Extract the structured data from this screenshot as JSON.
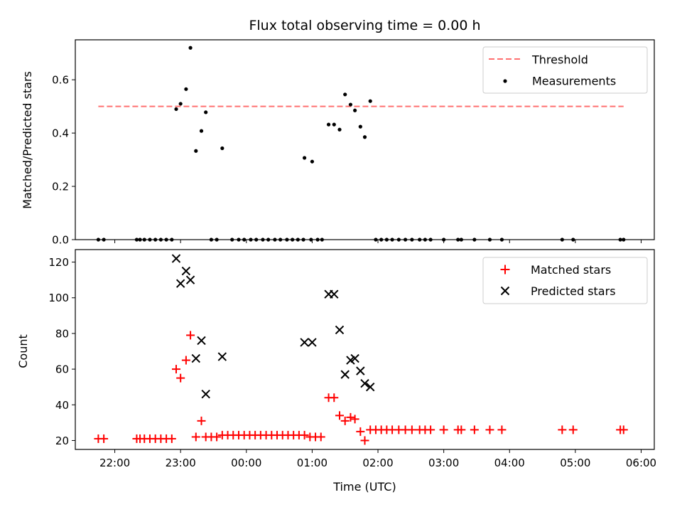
{
  "chart_data": [
    {
      "type": "scatter",
      "title": "Flux total observing time = 0.00 h",
      "xlabel": "",
      "ylabel": "Matched/Predicted stars",
      "xlim": [
        "21:24",
        "06:12"
      ],
      "ylim": [
        0,
        0.75
      ],
      "x_ticks": [
        "22:00",
        "23:00",
        "00:00",
        "01:00",
        "02:00",
        "03:00",
        "04:00",
        "05:00",
        "06:00"
      ],
      "x_tick_labels_visible": false,
      "y_ticks": [
        0.0,
        0.2,
        0.4,
        0.6
      ],
      "y_tick_labels": [
        "0.0",
        "0.2",
        "0.4",
        "0.6"
      ],
      "legend": "top-right",
      "series": [
        {
          "name": "Threshold",
          "kind": "dashed-line",
          "color": "#ff7070",
          "x": [
            "21:45",
            "05:44"
          ],
          "y": [
            0.5,
            0.5
          ]
        },
        {
          "name": "Measurements",
          "kind": "dots",
          "color": "#000000",
          "points": [
            [
              "21:45",
              0.0
            ],
            [
              "21:50",
              0.0
            ],
            [
              "22:20",
              0.0
            ],
            [
              "22:23",
              0.0
            ],
            [
              "22:27",
              0.0
            ],
            [
              "22:32",
              0.0
            ],
            [
              "22:37",
              0.0
            ],
            [
              "22:42",
              0.0
            ],
            [
              "22:47",
              0.0
            ],
            [
              "22:52",
              0.0
            ],
            [
              "22:56",
              0.49
            ],
            [
              "23:00",
              0.51
            ],
            [
              "23:05",
              0.565
            ],
            [
              "23:09",
              0.72
            ],
            [
              "23:14",
              0.333
            ],
            [
              "23:19",
              0.408
            ],
            [
              "23:23",
              0.478
            ],
            [
              "23:28",
              0.0
            ],
            [
              "23:33",
              0.0
            ],
            [
              "23:38",
              0.343
            ],
            [
              "23:47",
              0.0
            ],
            [
              "23:53",
              0.0
            ],
            [
              "23:58",
              0.0
            ],
            [
              "00:04",
              0.0
            ],
            [
              "00:09",
              0.0
            ],
            [
              "00:15",
              0.0
            ],
            [
              "00:20",
              0.0
            ],
            [
              "00:26",
              0.0
            ],
            [
              "00:31",
              0.0
            ],
            [
              "00:37",
              0.0
            ],
            [
              "00:42",
              0.0
            ],
            [
              "00:47",
              0.0
            ],
            [
              "00:52",
              0.0
            ],
            [
              "00:53",
              0.307
            ],
            [
              "00:59",
              0.0
            ],
            [
              "01:00",
              0.293
            ],
            [
              "01:05",
              0.0
            ],
            [
              "01:09",
              0.0
            ],
            [
              "01:15",
              0.432
            ],
            [
              "01:20",
              0.432
            ],
            [
              "01:25",
              0.413
            ],
            [
              "01:30",
              0.545
            ],
            [
              "01:35",
              0.507
            ],
            [
              "01:39",
              0.485
            ],
            [
              "01:44",
              0.424
            ],
            [
              "01:48",
              0.385
            ],
            [
              "01:53",
              0.52
            ],
            [
              "01:58",
              0.0
            ],
            [
              "02:03",
              0.0
            ],
            [
              "02:08",
              0.0
            ],
            [
              "02:13",
              0.0
            ],
            [
              "02:19",
              0.0
            ],
            [
              "02:25",
              0.0
            ],
            [
              "02:31",
              0.0
            ],
            [
              "02:38",
              0.0
            ],
            [
              "02:43",
              0.0
            ],
            [
              "02:48",
              0.0
            ],
            [
              "03:00",
              0.0
            ],
            [
              "03:13",
              0.0
            ],
            [
              "03:16",
              0.0
            ],
            [
              "03:28",
              0.0
            ],
            [
              "03:42",
              0.0
            ],
            [
              "03:53",
              0.0
            ],
            [
              "04:48",
              0.0
            ],
            [
              "04:58",
              0.0
            ],
            [
              "05:41",
              0.0
            ],
            [
              "05:44",
              0.0
            ]
          ]
        }
      ]
    },
    {
      "type": "scatter",
      "title": "",
      "xlabel": "Time (UTC)",
      "ylabel": "Count",
      "xlim": [
        "21:24",
        "06:12"
      ],
      "ylim": [
        15,
        127
      ],
      "x_ticks": [
        "22:00",
        "23:00",
        "00:00",
        "01:00",
        "02:00",
        "03:00",
        "04:00",
        "05:00",
        "06:00"
      ],
      "x_tick_labels": [
        "22:00",
        "23:00",
        "00:00",
        "01:00",
        "02:00",
        "03:00",
        "04:00",
        "05:00",
        "06:00"
      ],
      "y_ticks": [
        20,
        40,
        60,
        80,
        100,
        120
      ],
      "y_tick_labels": [
        "20",
        "40",
        "60",
        "80",
        "100",
        "120"
      ],
      "legend": "top-right",
      "series": [
        {
          "name": "Matched stars",
          "kind": "plus",
          "color": "#ff0000",
          "points": [
            [
              "21:45",
              21
            ],
            [
              "21:50",
              21
            ],
            [
              "22:20",
              21
            ],
            [
              "22:23",
              21
            ],
            [
              "22:27",
              21
            ],
            [
              "22:32",
              21
            ],
            [
              "22:37",
              21
            ],
            [
              "22:42",
              21
            ],
            [
              "22:47",
              21
            ],
            [
              "22:52",
              21
            ],
            [
              "22:56",
              60
            ],
            [
              "23:00",
              55
            ],
            [
              "23:05",
              65
            ],
            [
              "23:09",
              79
            ],
            [
              "23:14",
              22
            ],
            [
              "23:19",
              31
            ],
            [
              "23:23",
              22
            ],
            [
              "23:28",
              22
            ],
            [
              "23:33",
              22
            ],
            [
              "23:38",
              23
            ],
            [
              "23:43",
              23
            ],
            [
              "23:48",
              23
            ],
            [
              "23:53",
              23
            ],
            [
              "23:58",
              23
            ],
            [
              "00:03",
              23
            ],
            [
              "00:08",
              23
            ],
            [
              "00:13",
              23
            ],
            [
              "00:18",
              23
            ],
            [
              "00:23",
              23
            ],
            [
              "00:28",
              23
            ],
            [
              "00:33",
              23
            ],
            [
              "00:38",
              23
            ],
            [
              "00:43",
              23
            ],
            [
              "00:48",
              23
            ],
            [
              "00:53",
              23
            ],
            [
              "00:58",
              22
            ],
            [
              "01:03",
              22
            ],
            [
              "01:08",
              22
            ],
            [
              "01:15",
              44
            ],
            [
              "01:20",
              44
            ],
            [
              "01:25",
              34
            ],
            [
              "01:30",
              31
            ],
            [
              "01:35",
              33
            ],
            [
              "01:39",
              32
            ],
            [
              "01:44",
              25
            ],
            [
              "01:48",
              20
            ],
            [
              "01:53",
              26
            ],
            [
              "01:58",
              26
            ],
            [
              "02:03",
              26
            ],
            [
              "02:08",
              26
            ],
            [
              "02:13",
              26
            ],
            [
              "02:19",
              26
            ],
            [
              "02:25",
              26
            ],
            [
              "02:31",
              26
            ],
            [
              "02:38",
              26
            ],
            [
              "02:43",
              26
            ],
            [
              "02:48",
              26
            ],
            [
              "03:00",
              26
            ],
            [
              "03:13",
              26
            ],
            [
              "03:16",
              26
            ],
            [
              "03:28",
              26
            ],
            [
              "03:42",
              26
            ],
            [
              "03:53",
              26
            ],
            [
              "04:48",
              26
            ],
            [
              "04:58",
              26
            ],
            [
              "05:41",
              26
            ],
            [
              "05:44",
              26
            ]
          ]
        },
        {
          "name": "Predicted stars",
          "kind": "x",
          "color": "#000000",
          "points": [
            [
              "22:56",
              122
            ],
            [
              "23:00",
              108
            ],
            [
              "23:05",
              115
            ],
            [
              "23:09",
              110
            ],
            [
              "23:14",
              66
            ],
            [
              "23:19",
              76
            ],
            [
              "23:23",
              46
            ],
            [
              "23:38",
              67
            ],
            [
              "00:53",
              75
            ],
            [
              "01:00",
              75
            ],
            [
              "01:15",
              102
            ],
            [
              "01:20",
              102
            ],
            [
              "01:25",
              82
            ],
            [
              "01:30",
              57
            ],
            [
              "01:35",
              65
            ],
            [
              "01:39",
              66
            ],
            [
              "01:44",
              59
            ],
            [
              "01:48",
              52
            ],
            [
              "01:53",
              50
            ]
          ]
        }
      ]
    }
  ]
}
